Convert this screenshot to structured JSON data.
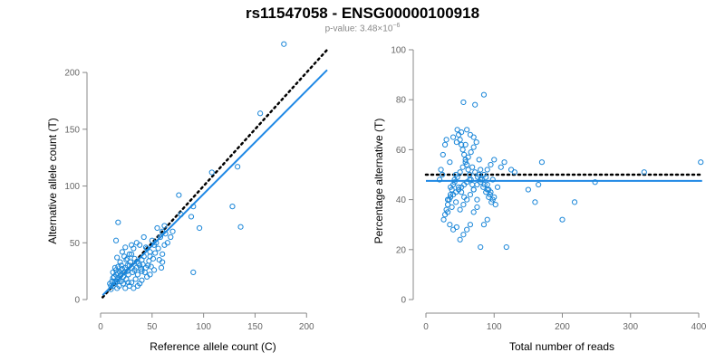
{
  "title": "rs11547058 - ENSG00000100918",
  "pvalue": {
    "prefix": "p-value: 3.48×10",
    "exponent": "−6"
  },
  "colors": {
    "points": "#1a86d8",
    "fit": "#1e88e5",
    "reference": "#000000",
    "axis": "#888888"
  },
  "chart_data": [
    {
      "type": "scatter",
      "name": "left",
      "xlabel": "Reference allele count (C)",
      "ylabel": "Alternative allele count (T)",
      "xlim": [
        0,
        220
      ],
      "ylim": [
        0,
        220
      ],
      "xticks": [
        0,
        50,
        100,
        150,
        200
      ],
      "yticks": [
        0,
        50,
        100,
        150,
        200
      ],
      "fit_line": {
        "slope": 0.91,
        "intercept": 2,
        "x_range": [
          2,
          220
        ]
      },
      "reference_line": {
        "slope": 1,
        "intercept": 0,
        "x_range": [
          2,
          220
        ],
        "style": "dotted"
      },
      "points": [
        [
          178,
          225
        ],
        [
          155,
          164
        ],
        [
          108,
          112
        ],
        [
          133,
          117
        ],
        [
          128,
          82
        ],
        [
          136,
          64
        ],
        [
          90,
          82
        ],
        [
          88,
          73
        ],
        [
          76,
          92
        ],
        [
          96,
          63
        ],
        [
          90,
          24
        ],
        [
          17,
          68
        ],
        [
          15,
          52
        ],
        [
          30,
          40
        ],
        [
          40,
          35
        ],
        [
          60,
          60
        ],
        [
          55,
          63
        ],
        [
          62,
          65
        ],
        [
          58,
          55
        ],
        [
          52,
          48
        ],
        [
          45,
          45
        ],
        [
          48,
          42
        ],
        [
          42,
          38
        ],
        [
          38,
          30
        ],
        [
          35,
          33
        ],
        [
          33,
          36
        ],
        [
          30,
          28
        ],
        [
          28,
          30
        ],
        [
          26,
          25
        ],
        [
          24,
          28
        ],
        [
          22,
          20
        ],
        [
          20,
          22
        ],
        [
          18,
          18
        ],
        [
          16,
          16
        ],
        [
          14,
          15
        ],
        [
          12,
          12
        ],
        [
          10,
          12
        ],
        [
          15,
          22
        ],
        [
          18,
          25
        ],
        [
          20,
          30
        ],
        [
          25,
          35
        ],
        [
          28,
          40
        ],
        [
          32,
          45
        ],
        [
          35,
          50
        ],
        [
          38,
          48
        ],
        [
          42,
          55
        ],
        [
          44,
          46
        ],
        [
          50,
          52
        ],
        [
          54,
          50
        ],
        [
          56,
          45
        ],
        [
          60,
          40
        ],
        [
          62,
          48
        ],
        [
          65,
          50
        ],
        [
          48,
          38
        ],
        [
          46,
          30
        ],
        [
          40,
          25
        ],
        [
          36,
          22
        ],
        [
          34,
          18
        ],
        [
          30,
          15
        ],
        [
          28,
          12
        ],
        [
          24,
          10
        ],
        [
          22,
          14
        ],
        [
          20,
          16
        ],
        [
          18,
          12
        ],
        [
          16,
          10
        ],
        [
          25,
          18
        ],
        [
          27,
          22
        ],
        [
          31,
          24
        ],
        [
          33,
          26
        ],
        [
          29,
          33
        ],
        [
          26,
          36
        ],
        [
          23,
          38
        ],
        [
          21,
          42
        ],
        [
          19,
          33
        ],
        [
          17,
          29
        ],
        [
          15,
          26
        ],
        [
          13,
          20
        ],
        [
          11,
          16
        ],
        [
          9,
          14
        ],
        [
          35,
          28
        ],
        [
          37,
          32
        ],
        [
          39,
          27
        ],
        [
          41,
          31
        ],
        [
          43,
          24
        ],
        [
          47,
          34
        ],
        [
          49,
          29
        ],
        [
          51,
          36
        ],
        [
          53,
          41
        ],
        [
          57,
          35
        ],
        [
          59,
          28
        ],
        [
          45,
          20
        ],
        [
          40,
          17
        ],
        [
          38,
          14
        ],
        [
          36,
          12
        ],
        [
          32,
          10
        ],
        [
          27,
          15
        ],
        [
          23,
          24
        ],
        [
          21,
          27
        ],
        [
          19,
          21
        ],
        [
          17,
          23
        ],
        [
          14,
          28
        ],
        [
          12,
          24
        ],
        [
          16,
          37
        ],
        [
          24,
          46
        ],
        [
          30,
          48
        ],
        [
          20,
          26
        ],
        [
          26,
          30
        ],
        [
          44,
          28
        ],
        [
          48,
          22
        ],
        [
          52,
          26
        ],
        [
          12,
          19
        ],
        [
          10,
          9
        ],
        [
          60,
          33
        ],
        [
          70,
          60
        ],
        [
          78,
          75
        ],
        [
          63,
          58
        ],
        [
          68,
          55
        ]
      ]
    },
    {
      "type": "scatter",
      "name": "right",
      "xlabel": "Total number of reads",
      "ylabel": "Percentage alternative (T)",
      "xlim": [
        0,
        400
      ],
      "ylim": [
        0,
        100
      ],
      "xticks": [
        0,
        100,
        200,
        300,
        400
      ],
      "yticks": [
        0,
        20,
        40,
        60,
        80,
        100
      ],
      "fit_line": {
        "y": 47.5,
        "x_range": [
          0,
          405
        ]
      },
      "reference_line": {
        "y": 50,
        "x_range": [
          0,
          405
        ],
        "style": "dotted"
      },
      "points": [
        [
          403,
          55
        ],
        [
          320,
          51
        ],
        [
          248,
          47
        ],
        [
          218,
          39
        ],
        [
          200,
          32
        ],
        [
          170,
          55
        ],
        [
          165,
          46
        ],
        [
          160,
          39
        ],
        [
          150,
          44
        ],
        [
          130,
          51
        ],
        [
          125,
          52
        ],
        [
          118,
          21
        ],
        [
          115,
          55
        ],
        [
          110,
          53
        ],
        [
          105,
          45
        ],
        [
          100,
          41
        ],
        [
          98,
          48
        ],
        [
          95,
          43
        ],
        [
          92,
          44
        ],
        [
          90,
          46
        ],
        [
          88,
          49
        ],
        [
          85,
          82
        ],
        [
          80,
          52
        ],
        [
          78,
          56
        ],
        [
          75,
          40
        ],
        [
          72,
          78
        ],
        [
          70,
          44
        ],
        [
          68,
          46
        ],
        [
          66,
          48
        ],
        [
          64,
          50
        ],
        [
          62,
          52
        ],
        [
          60,
          54
        ],
        [
          58,
          56
        ],
        [
          56,
          58
        ],
        [
          54,
          60
        ],
        [
          52,
          62
        ],
        [
          50,
          64
        ],
        [
          48,
          66
        ],
        [
          46,
          68
        ],
        [
          44,
          50
        ],
        [
          42,
          48
        ],
        [
          40,
          46
        ],
        [
          38,
          44
        ],
        [
          36,
          42
        ],
        [
          34,
          40
        ],
        [
          32,
          38
        ],
        [
          30,
          36
        ],
        [
          28,
          34
        ],
        [
          26,
          32
        ],
        [
          24,
          50
        ],
        [
          22,
          52
        ],
        [
          20,
          48
        ],
        [
          55,
          79
        ],
        [
          60,
          68
        ],
        [
          65,
          66
        ],
        [
          70,
          65
        ],
        [
          58,
          62
        ],
        [
          52,
          67
        ],
        [
          45,
          63
        ],
        [
          40,
          65
        ],
        [
          35,
          55
        ],
        [
          30,
          64
        ],
        [
          28,
          62
        ],
        [
          25,
          58
        ],
        [
          35,
          30
        ],
        [
          40,
          28
        ],
        [
          45,
          29
        ],
        [
          50,
          24
        ],
        [
          55,
          26
        ],
        [
          60,
          28
        ],
        [
          65,
          30
        ],
        [
          70,
          35
        ],
        [
          75,
          37
        ],
        [
          80,
          21
        ],
        [
          85,
          30
        ],
        [
          90,
          32
        ],
        [
          50,
          36
        ],
        [
          55,
          38
        ],
        [
          60,
          40
        ],
        [
          65,
          42
        ],
        [
          70,
          44
        ],
        [
          75,
          46
        ],
        [
          80,
          48
        ],
        [
          85,
          50
        ],
        [
          90,
          52
        ],
        [
          95,
          54
        ],
        [
          100,
          56
        ],
        [
          48,
          45
        ],
        [
          52,
          43
        ],
        [
          56,
          41
        ],
        [
          44,
          39
        ],
        [
          38,
          37
        ],
        [
          32,
          35
        ],
        [
          36,
          45
        ],
        [
          42,
          47
        ],
        [
          46,
          49
        ],
        [
          50,
          51
        ],
        [
          54,
          53
        ],
        [
          58,
          55
        ],
        [
          62,
          57
        ],
        [
          66,
          59
        ],
        [
          70,
          61
        ],
        [
          74,
          63
        ],
        [
          78,
          50
        ],
        [
          82,
          48
        ],
        [
          86,
          46
        ],
        [
          90,
          44
        ],
        [
          94,
          42
        ],
        [
          98,
          40
        ],
        [
          102,
          38
        ],
        [
          68,
          53
        ],
        [
          72,
          51
        ],
        [
          76,
          49
        ],
        [
          80,
          47
        ],
        [
          84,
          45
        ],
        [
          88,
          43
        ],
        [
          92,
          41
        ],
        [
          96,
          39
        ],
        [
          64,
          48
        ],
        [
          60,
          47
        ],
        [
          56,
          46
        ],
        [
          52,
          45
        ],
        [
          48,
          44
        ],
        [
          44,
          43
        ],
        [
          40,
          42
        ],
        [
          36,
          41
        ],
        [
          32,
          40
        ]
      ]
    }
  ]
}
